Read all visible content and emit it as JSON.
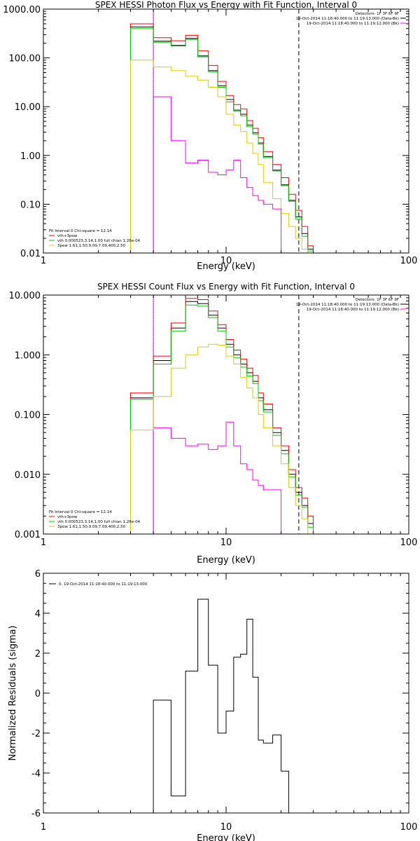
{
  "chart_data": [
    {
      "type": "line",
      "title": "SPEX HESSI Photon Flux vs Energy with Fit Function, Interval 0",
      "xlabel": "Energy (keV)",
      "ylabel": "",
      "xscale": "log",
      "yscale": "log",
      "xlim": [
        1,
        100
      ],
      "ylim": [
        0.01,
        1000
      ],
      "xticks": [
        1,
        10,
        100
      ],
      "xtick_labels": [
        "1",
        "10",
        "100"
      ],
      "yticks": [
        0.01,
        0.1,
        1,
        10,
        100,
        1000
      ],
      "ytick_labels": [
        "0.01",
        "0.10",
        "1.00",
        "10.00",
        "100.00",
        "1000.00"
      ],
      "vlines": [
        {
          "x": 4,
          "style": "dotted",
          "color": "#000000"
        },
        {
          "x": 4,
          "style": "solid",
          "color": "#ff00ff"
        },
        {
          "x": 25,
          "style": "dashed",
          "color": "#000000"
        }
      ],
      "annotations": [
        "Detectors: 1F 3F 6F 9F",
        "19-Oct-2014 11:18:40.000 to 11:19:13.000 (Data-Bk)",
        "19-Oct-2014 11:18:40.000 to 11:19:12.000 (Bk)"
      ],
      "annotation_colors": [
        "",
        "#000000",
        "#ff00ff"
      ],
      "legend": {
        "header": "Fit Interval 0   Chi-square = 12.14",
        "entries": [
          {
            "label": "vth+3pow",
            "color": "#ff0000"
          },
          {
            "label": "vth 0.000523,3.14,1.00  full chian 1.26e-04",
            "color": "#00cc00"
          },
          {
            "label": "3pow 1.61,1.50,9.09,7.09,400,2.50",
            "color": "#ddcc00"
          }
        ]
      },
      "edges": [
        3,
        4,
        5,
        6,
        7,
        8,
        9,
        10,
        11,
        12,
        13,
        14,
        15,
        16,
        18,
        20,
        22,
        24,
        26,
        28,
        30
      ],
      "series": [
        {
          "color": "#000000",
          "values": [
            430,
            220,
            180,
            250,
            110,
            55,
            27,
            14,
            8.5,
            7.0,
            4.2,
            2.9,
            1.8,
            0.95,
            0.5,
            0.25,
            0.12,
            0.055,
            0.025,
            0.012
          ]
        },
        {
          "color": "#ff0000",
          "values": [
            500,
            260,
            225,
            290,
            140,
            70,
            33,
            17,
            11,
            9.0,
            5.2,
            3.6,
            2.3,
            1.2,
            0.65,
            0.35,
            0.16,
            0.075,
            0.035,
            0.014
          ]
        },
        {
          "color": "#00cc00",
          "values": [
            400,
            210,
            175,
            240,
            105,
            52,
            25,
            12.5,
            8.0,
            6.5,
            3.9,
            2.7,
            1.7,
            0.9,
            0.48,
            0.24,
            0.115,
            0.05,
            0.022,
            0.011
          ]
        },
        {
          "color": "#ddcc00",
          "values": [
            90,
            65,
            55,
            42,
            35,
            25,
            16,
            7,
            4.2,
            3.1,
            1.8,
            1.1,
            0.65,
            0.28,
            0.13,
            0.065,
            0.035,
            0.02,
            0.012,
            0.01
          ]
        },
        {
          "color": "#ff00ff",
          "values": [
            null,
            16,
            2,
            0.7,
            0.8,
            0.45,
            0.4,
            0.5,
            0.8,
            0.35,
            0.22,
            0.15,
            0.12,
            0.1,
            0.08
          ]
        }
      ]
    },
    {
      "type": "line",
      "title": "SPEX HESSI Count Flux vs Energy with Fit Function, Interval 0",
      "xlabel": "Energy (keV)",
      "ylabel": "",
      "xscale": "log",
      "yscale": "log",
      "xlim": [
        1,
        100
      ],
      "ylim": [
        0.001,
        10
      ],
      "xticks": [
        1,
        10,
        100
      ],
      "xtick_labels": [
        "1",
        "10",
        "100"
      ],
      "yticks": [
        0.001,
        0.01,
        0.1,
        1,
        10
      ],
      "ytick_labels": [
        "0.001",
        "0.010",
        "0.100",
        "1.000",
        "10.000"
      ],
      "vlines": [
        {
          "x": 4,
          "style": "dotted",
          "color": "#000000"
        },
        {
          "x": 4,
          "style": "solid",
          "color": "#ff00ff"
        },
        {
          "x": 25,
          "style": "dashed",
          "color": "#000000"
        }
      ],
      "annotations": [
        "Detectors: 1F 3F 6F 9F",
        "19-Oct-2014 11:18:40.000 to 11:19:13.000 (Data-Bk)",
        "19-Oct-2014 11:18:40.000 to 11:19:12.000 (Bk)"
      ],
      "annotation_colors": [
        "",
        "#000000",
        "#ff00ff"
      ],
      "legend": {
        "header": "Fit Interval 0   Chi-square = 12.14",
        "entries": [
          {
            "label": "vth+3pow",
            "color": "#ff0000"
          },
          {
            "label": "vth 0.000523,3.14,1.00  full chian 1.26e-04",
            "color": "#00cc00"
          },
          {
            "label": "3pow 1.61,1.50,9.09,7.09,400,2.50",
            "color": "#ddcc00"
          }
        ]
      },
      "edges": [
        3,
        4,
        5,
        6,
        7,
        8,
        9,
        10,
        11,
        12,
        13,
        14,
        15,
        16,
        18,
        20,
        22,
        24,
        26,
        28,
        30
      ],
      "series": [
        {
          "color": "#000000",
          "values": [
            0.19,
            0.8,
            2.8,
            7.8,
            7.2,
            4.6,
            2.8,
            1.5,
            1.0,
            0.7,
            0.5,
            0.36,
            0.19,
            0.12,
            0.05,
            0.025,
            0.01,
            0.005,
            0.003,
            0.0015
          ]
        },
        {
          "color": "#ff00ff",
          "values": [
            null,
            0.06,
            0.04,
            0.03,
            0.032,
            0.026,
            0.03,
            0.075,
            0.03,
            0.015,
            0.012,
            0.008,
            0.0065,
            0.0055,
            0.0055
          ]
        },
        {
          "color": "#ff0000",
          "values": [
            0.23,
            0.95,
            3.4,
            8.8,
            8.4,
            5.4,
            3.2,
            1.8,
            1.2,
            0.85,
            0.6,
            0.45,
            0.23,
            0.15,
            0.06,
            0.03,
            0.012,
            0.006,
            0.004,
            0.002
          ]
        },
        {
          "color": "#00cc00",
          "values": [
            0.18,
            0.7,
            2.5,
            6.8,
            6.5,
            4.2,
            2.5,
            1.35,
            0.9,
            0.62,
            0.44,
            0.33,
            0.17,
            0.11,
            0.045,
            0.022,
            0.009,
            0.0045,
            0.0028,
            0.0013
          ]
        },
        {
          "color": "#ddcc00",
          "values": [
            0.055,
            0.2,
            0.6,
            1.0,
            1.35,
            1.5,
            1.45,
            0.95,
            0.7,
            0.42,
            0.28,
            0.19,
            0.1,
            0.06,
            0.03,
            0.015,
            0.006,
            0.003,
            0.0018,
            0.001
          ]
        }
      ]
    },
    {
      "type": "line",
      "title": "",
      "xlabel": "Energy (keV)",
      "ylabel": "Normalized Residuals (sigma)",
      "xscale": "log",
      "yscale": "linear",
      "xlim": [
        1,
        100
      ],
      "ylim": [
        -6,
        6
      ],
      "xticks": [
        1,
        10,
        100
      ],
      "xtick_labels": [
        "1",
        "10",
        "100"
      ],
      "yticks": [
        -6,
        -4,
        -2,
        0,
        2,
        4,
        6
      ],
      "ytick_labels": [
        "-6",
        "-4",
        "-2",
        "0",
        "2",
        "4",
        "6"
      ],
      "legend": {
        "entries": [
          {
            "label": "0. 19-Oct-2014 11:18:40.000 to 11:19:13.000",
            "color": "#000000"
          }
        ]
      },
      "edges": [
        4,
        5,
        6,
        7,
        8,
        9,
        10,
        11,
        12,
        13,
        14,
        15,
        16,
        18,
        20,
        22,
        24,
        26
      ],
      "series": [
        {
          "color": "#000000",
          "values": [
            -0.35,
            -5.15,
            1.1,
            4.7,
            1.4,
            -2.0,
            -0.9,
            1.8,
            1.95,
            3.7,
            0.8,
            -2.35,
            -2.5,
            -2.1,
            -3.9,
            -6.0,
            -6.0
          ]
        }
      ]
    }
  ]
}
